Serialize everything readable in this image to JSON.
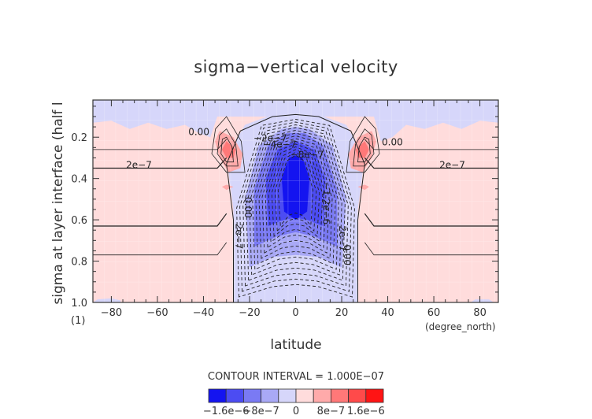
{
  "chart_data": {
    "type": "heatmap",
    "subtype": "filled-contour",
    "title": "sigma−vertical velocity",
    "xlabel": "latitude",
    "xunits": "(degree_north)",
    "ylabel": "sigma at layer interface (half l",
    "yunits": "(1)",
    "xlim": [
      -88,
      88
    ],
    "ylim": [
      1.0,
      0.02
    ],
    "y_inverted": true,
    "xticks": [
      -80,
      -60,
      -40,
      -20,
      0,
      20,
      40,
      60,
      80
    ],
    "xtick_labels": [
      "−80",
      "−60",
      "−40",
      "−20",
      "0",
      "20",
      "40",
      "60",
      "80"
    ],
    "yticks": [
      0.2,
      0.4,
      0.6,
      0.8,
      1.0
    ],
    "ytick_labels": [
      "0.2",
      "0.4",
      "0.6",
      "0.8",
      "1.0"
    ],
    "grid": true,
    "contour_interval_text": "CONTOUR INTERVAL = 1.000E−07",
    "contour_interval": 1e-07,
    "colorbar": {
      "levels": [
        -2e-06,
        -1.6e-06,
        -1.2e-06,
        -8e-07,
        -4e-07,
        0,
        4e-07,
        8e-07,
        1.2e-06,
        1.6e-06,
        2e-06
      ],
      "colors": [
        "#1414f0",
        "#4c4cf2",
        "#7a7af4",
        "#a9a9f6",
        "#d6d6fa",
        "#ffdcdc",
        "#ffaaaa",
        "#ff7878",
        "#ff4a4a",
        "#ff1414"
      ],
      "tick_labels": [
        {
          "value": -1.6e-06,
          "text": "−1.6e−6"
        },
        {
          "value": -8e-07,
          "text": "−8e−7"
        },
        {
          "value": 0,
          "text": "0"
        },
        {
          "value": 8e-07,
          "text": "8e−7"
        },
        {
          "value": 1.6e-06,
          "text": "1.6e−6"
        }
      ],
      "placement": "bottom"
    },
    "contour_labels": [
      {
        "text": "2e−7",
        "lat": -68,
        "sigma": 0.35
      },
      {
        "text": "2e−7",
        "lat": 68,
        "sigma": 0.35
      },
      {
        "text": "0.00",
        "lat": -42,
        "sigma": 0.19
      },
      {
        "text": "0.00",
        "lat": 42,
        "sigma": 0.24
      },
      {
        "text": "0.00",
        "lat": -22,
        "sigma": 0.54
      },
      {
        "text": "0.00",
        "lat": 21,
        "sigma": 0.77
      },
      {
        "text": "2e−7",
        "lat": -26,
        "sigma": 0.68
      },
      {
        "text": "2e−7",
        "lat": 19,
        "sigma": 0.69
      },
      {
        "text": "−2e−7",
        "lat": -11,
        "sigma": 0.22
      },
      {
        "text": "−4e−7",
        "lat": -7,
        "sigma": 0.25
      },
      {
        "text": "−8e−7",
        "lat": 5,
        "sigma": 0.3
      },
      {
        "text": "−1.2e−6",
        "lat": 12,
        "sigma": 0.52
      }
    ],
    "features": {
      "descent_max": {
        "lat": 0,
        "sigma": 0.42,
        "value_approx": -1.9e-06
      },
      "ascent_maxima": [
        {
          "lat": -30,
          "sigma": 0.26,
          "value_approx": 8e-07
        },
        {
          "lat": 30,
          "sigma": 0.26,
          "value_approx": 8e-07
        }
      ],
      "negative_band_top": {
        "sigma_range": [
          0.02,
          0.18
        ],
        "value_approx": -1e-07
      },
      "central_negative_column_lat_range": [
        -27,
        27
      ]
    }
  }
}
